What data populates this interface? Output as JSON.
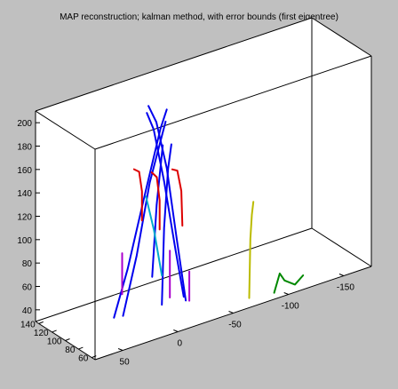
{
  "chart_data": {
    "type": "line",
    "subtype": "3d-line-plot",
    "title": "MAP reconstruction; kalman method, with error bounds (first eigentree)",
    "background": "#c0c0c0",
    "plot_area_color": "#ffffff",
    "axes": {
      "z_ticks": [
        "40",
        "60",
        "80",
        "100",
        "120",
        "140",
        "160",
        "180",
        "200"
      ],
      "y_ticks": [
        "140",
        "120",
        "100",
        "80",
        "60"
      ],
      "x_ticks": [
        "-150",
        "-100",
        "-50",
        "0",
        "50"
      ]
    },
    "series": [
      {
        "color": "#0000ee",
        "points": [
          [
            -25,
            88,
            40
          ],
          [
            -20,
            92,
            80
          ],
          [
            -12,
            96,
            140
          ],
          [
            -5,
            100,
            185
          ],
          [
            0,
            102,
            200
          ]
        ]
      },
      {
        "color": "#0000ee",
        "points": [
          [
            -28,
            90,
            35
          ],
          [
            -22,
            94,
            90
          ],
          [
            -15,
            97,
            150
          ],
          [
            -8,
            101,
            190
          ],
          [
            -2,
            103,
            205
          ]
        ]
      },
      {
        "color": "#0000ee",
        "points": [
          [
            -10,
            96,
            35
          ],
          [
            -12,
            96,
            100
          ],
          [
            -15,
            95,
            150
          ],
          [
            -18,
            95,
            170
          ]
        ]
      },
      {
        "color": "#0000ee",
        "points": [
          [
            25,
            110,
            30
          ],
          [
            15,
            106,
            70
          ],
          [
            2,
            102,
            130
          ],
          [
            -10,
            98,
            185
          ],
          [
            -15,
            97,
            200
          ]
        ]
      },
      {
        "color": "#0000ee",
        "points": [
          [
            18,
            108,
            30
          ],
          [
            8,
            104,
            80
          ],
          [
            -2,
            101,
            140
          ],
          [
            -14,
            97,
            190
          ]
        ]
      },
      {
        "color": "#0000ee",
        "points": [
          [
            -3,
            99,
            60
          ],
          [
            -7,
            99,
            120
          ],
          [
            -12,
            98,
            170
          ]
        ]
      },
      {
        "color": "#dd0000",
        "points": [
          [
            -25,
            90,
            100
          ],
          [
            -24,
            90,
            130
          ],
          [
            -21,
            91,
            148
          ],
          [
            -17,
            92,
            150
          ]
        ]
      },
      {
        "color": "#dd0000",
        "points": [
          [
            -8,
            96,
            100
          ],
          [
            -8,
            96,
            125
          ],
          [
            -6,
            97,
            145
          ],
          [
            -2,
            98,
            150
          ]
        ]
      },
      {
        "color": "#dd0000",
        "points": [
          [
            5,
            101,
            110
          ],
          [
            5,
            101,
            135
          ],
          [
            7,
            102,
            152
          ],
          [
            11,
            103,
            155
          ]
        ]
      },
      {
        "color": "#00aacc",
        "points": [
          [
            -10,
            96,
            60
          ],
          [
            -4,
            98,
            100
          ],
          [
            2,
            100,
            130
          ]
        ]
      },
      {
        "color": "#aa00cc",
        "points": [
          [
            -30,
            88,
            35
          ],
          [
            -30,
            88,
            60
          ]
        ]
      },
      {
        "color": "#aa00cc",
        "points": [
          [
            -16,
            94,
            40
          ],
          [
            -16,
            94,
            80
          ]
        ]
      },
      {
        "color": "#aa00cc",
        "points": [
          [
            20,
            106,
            50
          ],
          [
            20,
            106,
            85
          ]
        ]
      },
      {
        "color": "#bbbb00",
        "points": [
          [
            -95,
            106,
            10
          ],
          [
            -96,
            106,
            60
          ],
          [
            -98,
            107,
            80
          ],
          [
            -100,
            108,
            90
          ]
        ]
      },
      {
        "color": "#008800",
        "points": [
          [
            -120,
            110,
            5
          ],
          [
            -125,
            110,
            20
          ],
          [
            -130,
            111,
            12
          ],
          [
            -140,
            112,
            5
          ],
          [
            -148,
            113,
            10
          ]
        ]
      }
    ]
  }
}
